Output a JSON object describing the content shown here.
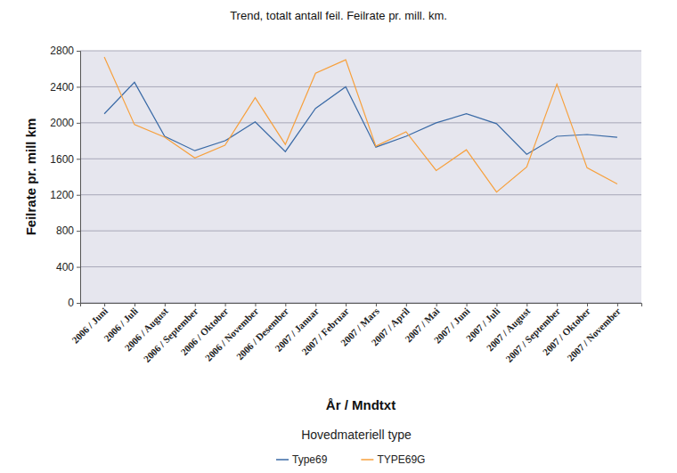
{
  "chart_data": {
    "type": "line",
    "title": "Trend, totalt antall feil. Feilrate pr. mill. km.",
    "x_label": "År / Mndtxt",
    "y_label": "Feilrate pr. mill km",
    "legend_title": "Hovedmateriell type",
    "legend": "bottom",
    "grid": true,
    "categories": [
      "2006 / Juni",
      "2006 / Juli",
      "2006 / August",
      "2006 / September",
      "2006 / Oktober",
      "2006 / November",
      "2006 / Desember",
      "2007 / Januar",
      "2007 / Februar",
      "2007 / Mars",
      "2007 / April",
      "2007 / Mai",
      "2007 / Juni",
      "2007 / Juli",
      "2007 / August",
      "2007 / September",
      "2007 / Oktober",
      "2007 / November"
    ],
    "series": [
      {
        "name": "Type69",
        "color": "#3a6aa6",
        "values": [
          2100,
          2450,
          1850,
          1690,
          1800,
          2010,
          1680,
          2160,
          2400,
          1730,
          1850,
          2000,
          2100,
          1990,
          1650,
          1850,
          1870,
          1840
        ]
      },
      {
        "name": "TYPE69G",
        "color": "#f7a03c",
        "values": [
          2730,
          1980,
          1840,
          1610,
          1750,
          2280,
          1760,
          2550,
          2700,
          1740,
          1900,
          1470,
          1700,
          1230,
          1510,
          2430,
          1500,
          1320
        ]
      }
    ],
    "ylim": [
      0,
      2800
    ],
    "yticks": [
      0,
      400,
      800,
      1200,
      1600,
      2000,
      2400,
      2800
    ]
  }
}
